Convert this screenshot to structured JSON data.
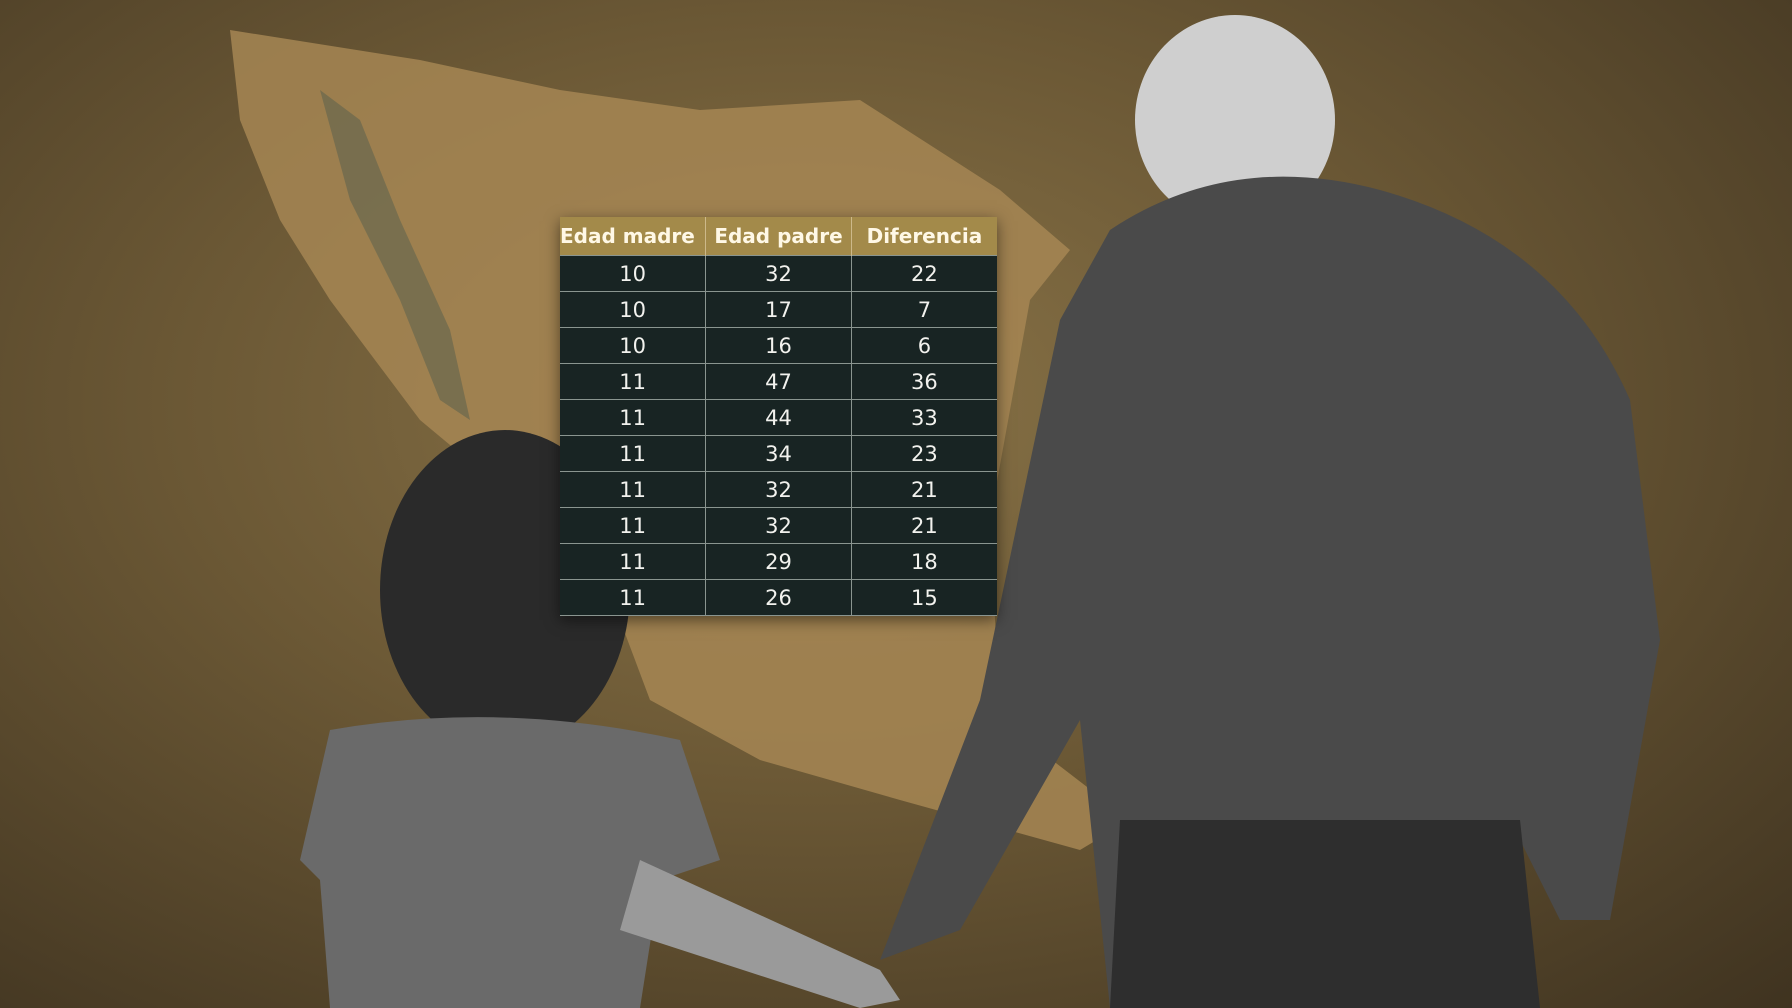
{
  "table": {
    "headers": [
      "Edad madre ↑",
      "Edad padre",
      "Diferencia"
    ],
    "rows": [
      [
        "10",
        "32",
        "22"
      ],
      [
        "10",
        "17",
        "7"
      ],
      [
        "10",
        "16",
        "6"
      ],
      [
        "11",
        "47",
        "36"
      ],
      [
        "11",
        "44",
        "33"
      ],
      [
        "11",
        "34",
        "23"
      ],
      [
        "11",
        "32",
        "21"
      ],
      [
        "11",
        "32",
        "21"
      ],
      [
        "11",
        "29",
        "18"
      ],
      [
        "11",
        "26",
        "15"
      ]
    ],
    "colors": {
      "header": "#a38a4a",
      "body": "#182423"
    }
  }
}
